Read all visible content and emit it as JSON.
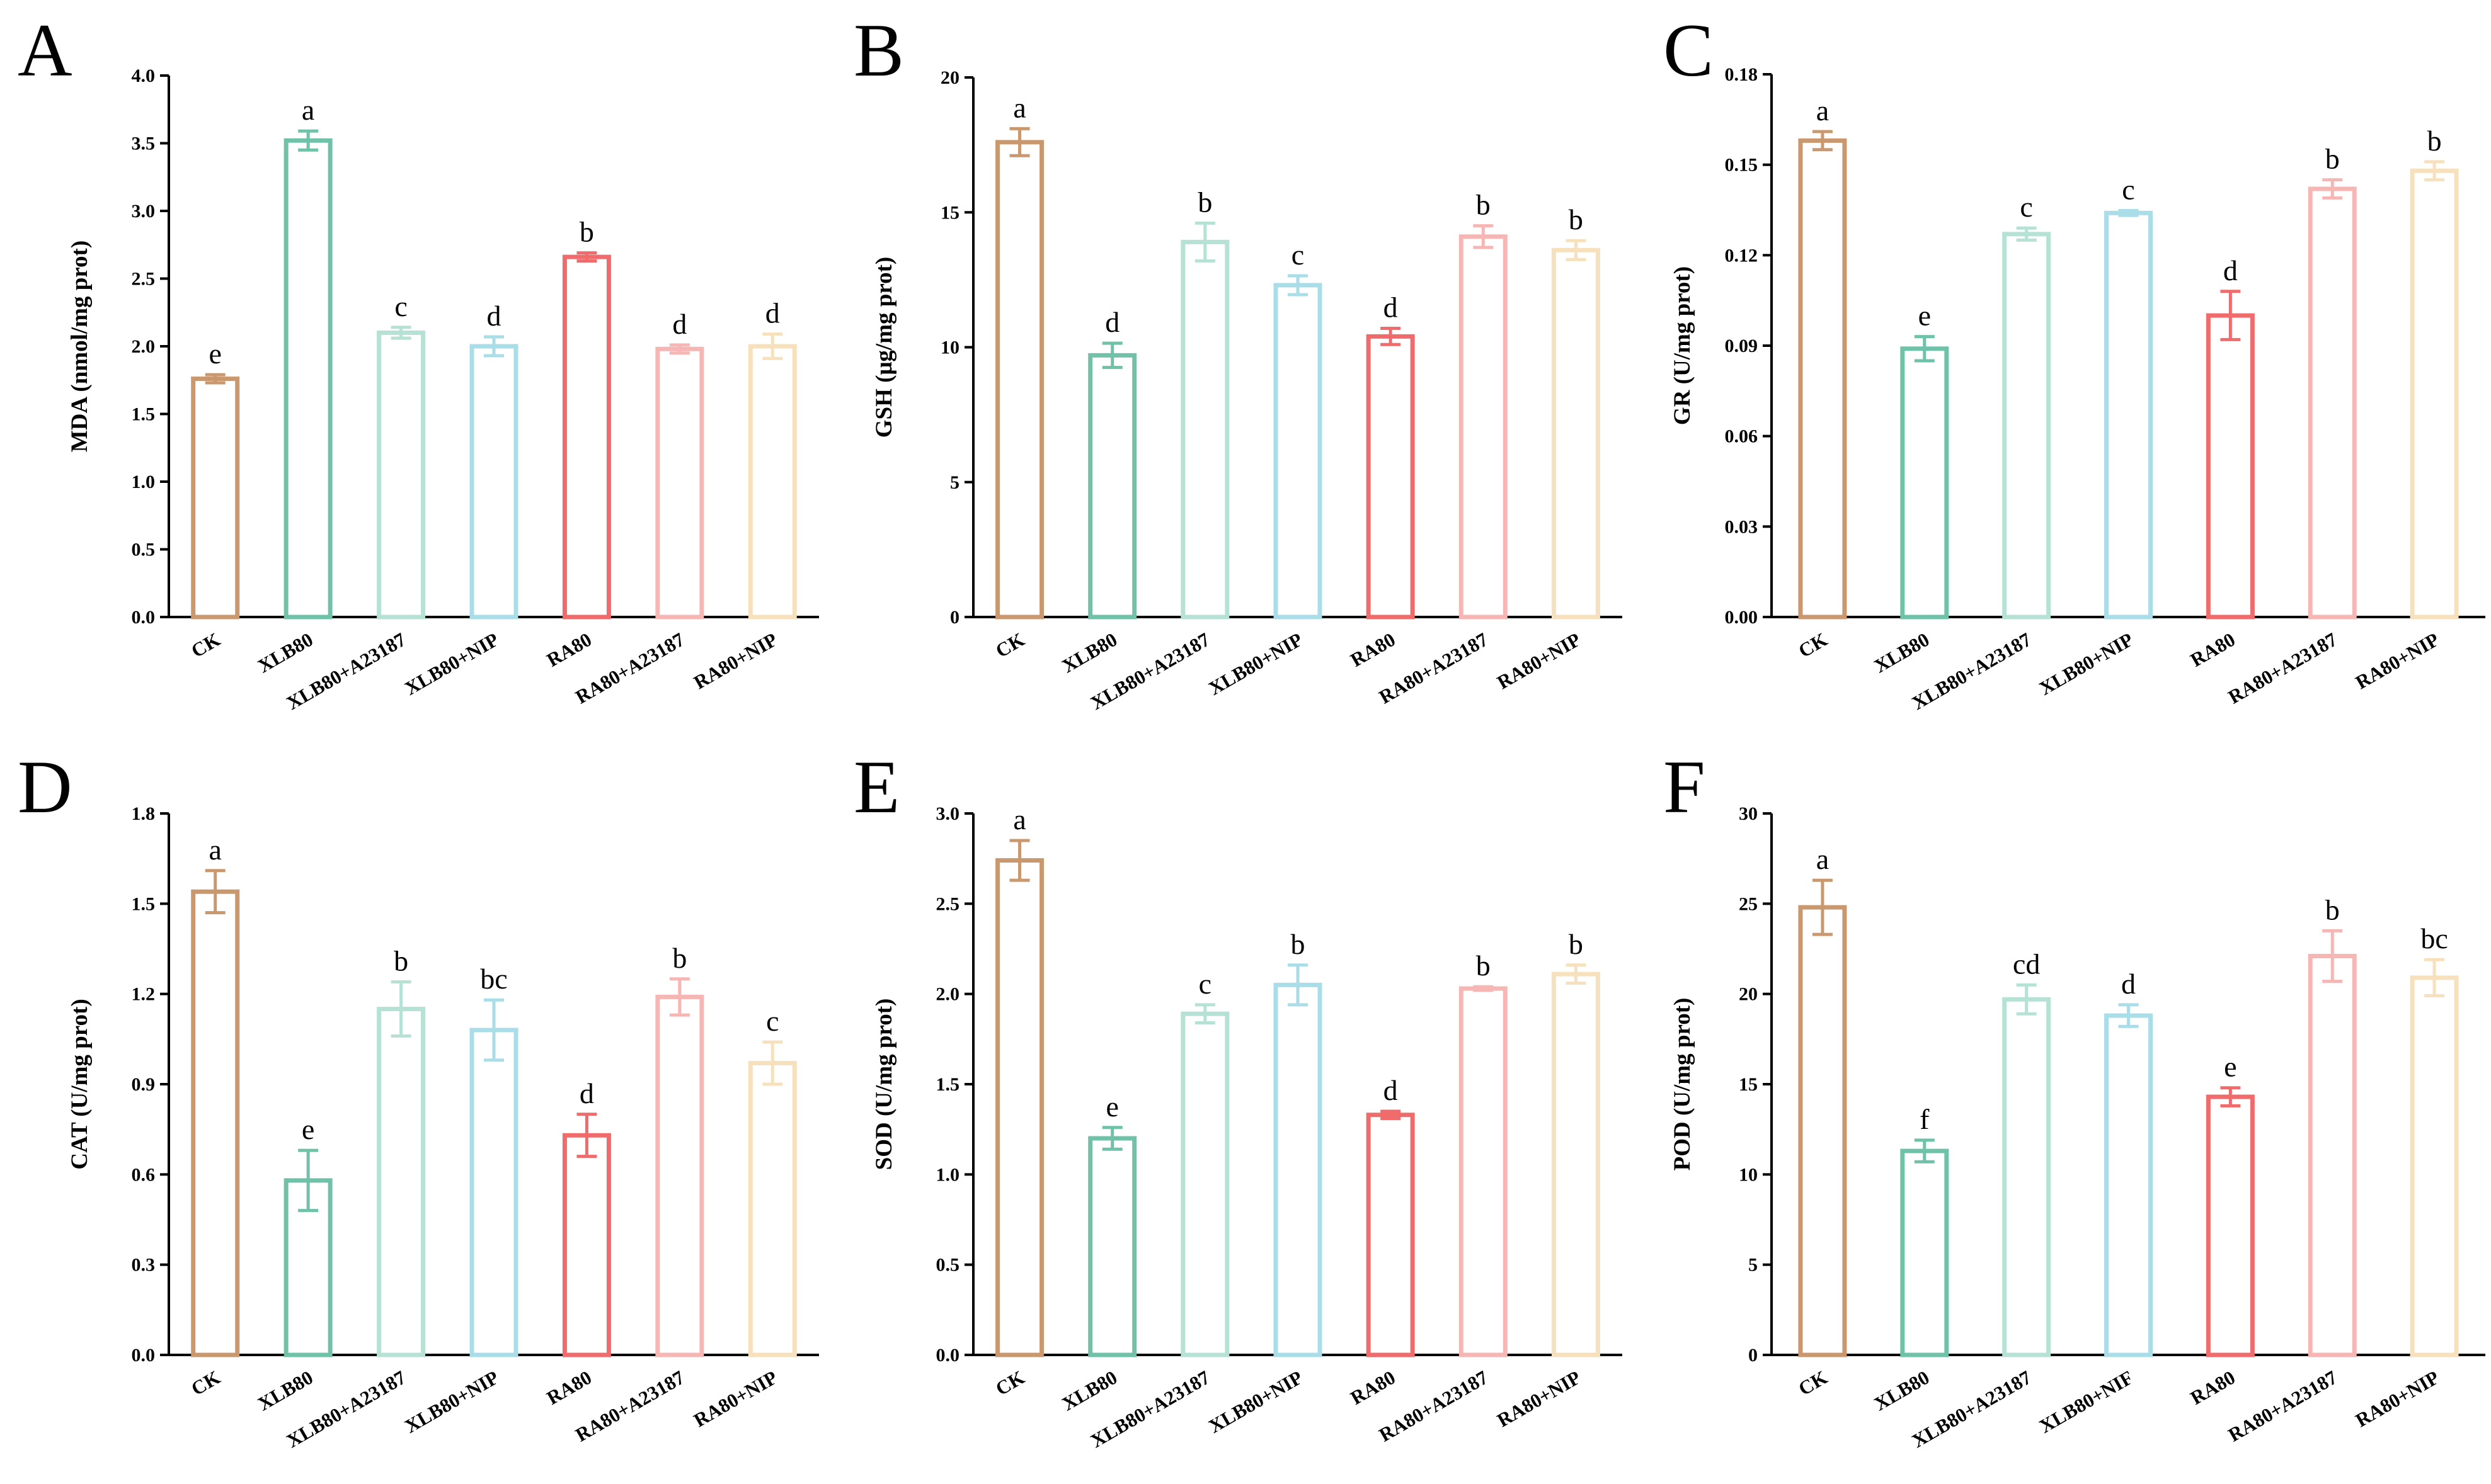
{
  "chart_data": [
    {
      "panel": "A",
      "type": "bar",
      "ylabel": "MDA (nmol/mg prot)",
      "ylim": [
        0,
        4.0
      ],
      "yticks": [
        "0.0",
        "0.5",
        "1.0",
        "1.5",
        "2.0",
        "2.5",
        "3.0",
        "3.5",
        "4.0"
      ],
      "categories": [
        "CK",
        "XLB80",
        "XLB80+A23187",
        "XLB80+NIP",
        "RA80",
        "RA80+A23187",
        "RA80+NIP"
      ],
      "values": [
        1.76,
        3.52,
        2.1,
        2.0,
        2.66,
        1.98,
        2.0
      ],
      "errors": [
        0.03,
        0.07,
        0.04,
        0.07,
        0.03,
        0.03,
        0.09
      ],
      "sig": [
        "e",
        "a",
        "c",
        "d",
        "b",
        "d",
        "d"
      ]
    },
    {
      "panel": "B",
      "type": "bar",
      "ylabel": "GSH (μg/mg prot)",
      "ylim": [
        0,
        20
      ],
      "yticks": [
        "0",
        "5",
        "10",
        "15",
        "20"
      ],
      "categories": [
        "CK",
        "XLB80",
        "XLB80+A23187",
        "XLB80+NIP",
        "RA80",
        "RA80+A23187",
        "RA80+NIP"
      ],
      "values": [
        17.6,
        9.7,
        13.9,
        12.3,
        10.4,
        14.1,
        13.6
      ],
      "errors": [
        0.5,
        0.45,
        0.7,
        0.35,
        0.3,
        0.4,
        0.35
      ],
      "sig": [
        "a",
        "d",
        "b",
        "c",
        "d",
        "b",
        "b"
      ]
    },
    {
      "panel": "C",
      "type": "bar",
      "ylabel": "GR (U/mg prot)",
      "ylim": [
        0,
        0.18
      ],
      "yticks": [
        "0.00",
        "0.03",
        "0.06",
        "0.09",
        "0.12",
        "0.15",
        "0.18"
      ],
      "categories": [
        "CK",
        "XLB80",
        "XLB80+A23187",
        "XLB80+NIP",
        "RA80",
        "RA80+A23187",
        "RA80+NIP"
      ],
      "values": [
        0.158,
        0.089,
        0.127,
        0.134,
        0.1,
        0.142,
        0.148
      ],
      "errors": [
        0.003,
        0.004,
        0.002,
        0.0008,
        0.008,
        0.003,
        0.003
      ],
      "sig": [
        "a",
        "e",
        "c",
        "c",
        "d",
        "b",
        "b"
      ]
    },
    {
      "panel": "D",
      "type": "bar",
      "ylabel": "CAT (U/mg prot)",
      "ylim": [
        0,
        1.8
      ],
      "yticks": [
        "0.0",
        "0.3",
        "0.6",
        "0.9",
        "1.2",
        "1.5",
        "1.8"
      ],
      "categories": [
        "CK",
        "XLB80",
        "XLB80+A23187",
        "XLB80+NIP",
        "RA80",
        "RA80+A23187",
        "RA80+NIP"
      ],
      "values": [
        1.54,
        0.58,
        1.15,
        1.08,
        0.73,
        1.19,
        0.97
      ],
      "errors": [
        0.07,
        0.1,
        0.09,
        0.1,
        0.07,
        0.06,
        0.07
      ],
      "sig": [
        "a",
        "e",
        "b",
        "bc",
        "d",
        "b",
        "c"
      ]
    },
    {
      "panel": "E",
      "type": "bar",
      "ylabel": "SOD (U/mg prot)",
      "ylim": [
        0,
        3.0
      ],
      "yticks": [
        "0.0",
        "0.5",
        "1.0",
        "1.5",
        "2.0",
        "2.5",
        "3.0"
      ],
      "categories": [
        "CK",
        "XLB80",
        "XLB80+A23187",
        "XLB80+NIP",
        "RA80",
        "RA80+A23187",
        "RA80+NIP"
      ],
      "values": [
        2.74,
        1.2,
        1.89,
        2.05,
        1.33,
        2.03,
        2.11
      ],
      "errors": [
        0.11,
        0.06,
        0.05,
        0.11,
        0.02,
        0.01,
        0.05
      ],
      "sig": [
        "a",
        "e",
        "c",
        "b",
        "d",
        "b",
        "b"
      ]
    },
    {
      "panel": "F",
      "type": "bar",
      "ylabel": "POD (U/mg prot)",
      "ylim": [
        0,
        30
      ],
      "yticks": [
        "0",
        "5",
        "10",
        "15",
        "20",
        "25",
        "30"
      ],
      "categories": [
        "CK",
        "XLB80",
        "XLB80+A23187",
        "XLB80+NIF",
        "RA80",
        "RA80+A23187",
        "RA80+NIP"
      ],
      "values": [
        24.8,
        11.3,
        19.7,
        18.8,
        14.3,
        22.1,
        20.9
      ],
      "errors": [
        1.5,
        0.6,
        0.8,
        0.6,
        0.5,
        1.4,
        1.0
      ],
      "sig": [
        "a",
        "f",
        "cd",
        "d",
        "e",
        "b",
        "bc"
      ]
    }
  ],
  "colors": [
    "#c9986f",
    "#6fc1a8",
    "#b5e2d4",
    "#a9dde8",
    "#f06b6b",
    "#f6b6b4",
    "#f7e1bc"
  ]
}
